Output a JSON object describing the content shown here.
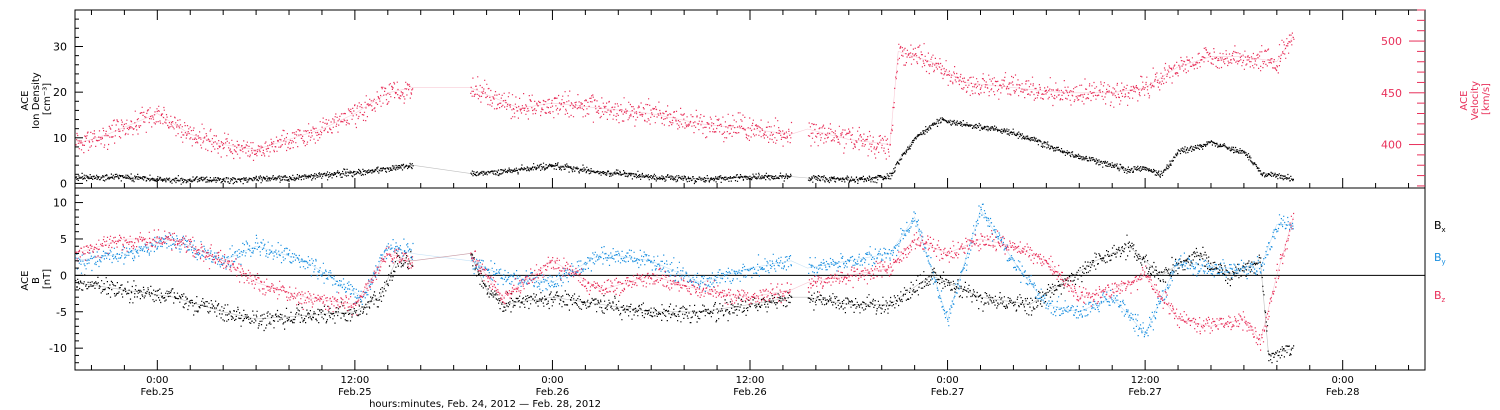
{
  "chart_data": {
    "time_axis": {
      "label": "hours:minutes, Feb. 24, 2012 — Feb. 28, 2012",
      "start": "2012-02-24T19:00",
      "end": "2012-02-28T05:00",
      "ticks": [
        {
          "t": "2012-02-25T00:00",
          "time": "0:00",
          "date": "Feb.25"
        },
        {
          "t": "2012-02-25T12:00",
          "time": "12:00",
          "date": "Feb.25"
        },
        {
          "t": "2012-02-26T00:00",
          "time": "0:00",
          "date": "Feb.26"
        },
        {
          "t": "2012-02-26T12:00",
          "time": "12:00",
          "date": "Feb.26"
        },
        {
          "t": "2012-02-27T00:00",
          "time": "0:00",
          "date": "Feb.27"
        },
        {
          "t": "2012-02-27T12:00",
          "time": "12:00",
          "date": "Feb.27"
        },
        {
          "t": "2012-02-28T00:00",
          "time": "0:00",
          "date": "Feb.28"
        }
      ],
      "data_gaps": [
        {
          "from": "2012-02-25T15:30",
          "to": "2012-02-25T19:00"
        },
        {
          "from": "2012-02-26T14:30",
          "to": "2012-02-26T15:30"
        }
      ],
      "data_end": "2012-02-27T21:00"
    },
    "panels": [
      {
        "type": "scatter",
        "ylabel_lines": [
          "ACE",
          "Ion Density",
          "[cm⁻³]"
        ],
        "ylim": [
          -1,
          38
        ],
        "yticks": [
          0,
          10,
          20,
          30
        ],
        "right_axis": {
          "ylabel_lines": [
            "ACE",
            "Velocity",
            "[km/s]"
          ],
          "ylim": [
            358,
            530
          ],
          "yticks": [
            400,
            450,
            500
          ],
          "color": "#e8305a"
        },
        "series": [
          {
            "axis": "left",
            "color": "#000000",
            "points": [
              [
                "2012-02-24T19:00",
                1.5
              ],
              [
                "2012-02-24T22:00",
                1.5
              ],
              [
                "2012-02-25T00:00",
                1.0
              ],
              [
                "2012-02-25T03:00",
                0.8
              ],
              [
                "2012-02-25T06:00",
                1.0
              ],
              [
                "2012-02-25T09:00",
                1.5
              ],
              [
                "2012-02-25T12:00",
                2.5
              ],
              [
                "2012-02-25T15:30",
                4.0
              ],
              [
                "2012-02-25T19:00",
                2.2
              ],
              [
                "2012-02-25T21:00",
                2.8
              ],
              [
                "2012-02-26T00:00",
                4.0
              ],
              [
                "2012-02-26T03:00",
                2.5
              ],
              [
                "2012-02-26T06:00",
                1.5
              ],
              [
                "2012-02-26T09:00",
                1.0
              ],
              [
                "2012-02-26T12:00",
                1.5
              ],
              [
                "2012-02-26T14:30",
                1.5
              ],
              [
                "2012-02-26T15:30",
                1.2
              ],
              [
                "2012-02-26T19:00",
                1.0
              ],
              [
                "2012-02-26T20:30",
                1.5
              ],
              [
                "2012-02-26T21:00",
                5.0
              ],
              [
                "2012-02-26T22:00",
                10.0
              ],
              [
                "2012-02-26T23:30",
                14.0
              ],
              [
                "2012-02-27T01:00",
                13.0
              ],
              [
                "2012-02-27T03:00",
                12.0
              ],
              [
                "2012-02-27T05:00",
                10.0
              ],
              [
                "2012-02-27T07:00",
                7.0
              ],
              [
                "2012-02-27T09:00",
                5.0
              ],
              [
                "2012-02-27T11:00",
                3.0
              ],
              [
                "2012-02-27T12:00",
                3.5
              ],
              [
                "2012-02-27T13:00",
                2.0
              ],
              [
                "2012-02-27T14:00",
                7.0
              ],
              [
                "2012-02-27T16:00",
                9.0
              ],
              [
                "2012-02-27T18:00",
                7.0
              ],
              [
                "2012-02-27T19:00",
                2.5
              ],
              [
                "2012-02-27T21:00",
                1.0
              ]
            ]
          },
          {
            "axis": "right",
            "color": "#e8305a",
            "points": [
              [
                "2012-02-24T19:00",
                400
              ],
              [
                "2012-02-24T21:00",
                410
              ],
              [
                "2012-02-25T00:00",
                430
              ],
              [
                "2012-02-25T02:00",
                410
              ],
              [
                "2012-02-25T04:00",
                400
              ],
              [
                "2012-02-25T06:00",
                395
              ],
              [
                "2012-02-25T08:00",
                405
              ],
              [
                "2012-02-25T10:00",
                415
              ],
              [
                "2012-02-25T12:00",
                430
              ],
              [
                "2012-02-25T14:00",
                450
              ],
              [
                "2012-02-25T15:30",
                455
              ],
              [
                "2012-02-25T19:00",
                455
              ],
              [
                "2012-02-25T22:00",
                435
              ],
              [
                "2012-02-26T00:00",
                440
              ],
              [
                "2012-02-26T03:00",
                435
              ],
              [
                "2012-02-26T06:00",
                430
              ],
              [
                "2012-02-26T09:00",
                420
              ],
              [
                "2012-02-26T12:00",
                415
              ],
              [
                "2012-02-26T14:30",
                410
              ],
              [
                "2012-02-26T15:30",
                415
              ],
              [
                "2012-02-26T18:00",
                405
              ],
              [
                "2012-02-26T20:30",
                400
              ],
              [
                "2012-02-26T21:00",
                490
              ],
              [
                "2012-02-26T23:00",
                480
              ],
              [
                "2012-02-27T01:00",
                460
              ],
              [
                "2012-02-27T04:00",
                455
              ],
              [
                "2012-02-27T07:00",
                450
              ],
              [
                "2012-02-27T10:00",
                450
              ],
              [
                "2012-02-27T12:00",
                455
              ],
              [
                "2012-02-27T14:00",
                475
              ],
              [
                "2012-02-27T16:00",
                485
              ],
              [
                "2012-02-27T18:00",
                485
              ],
              [
                "2012-02-27T20:00",
                480
              ],
              [
                "2012-02-27T21:00",
                505
              ]
            ]
          }
        ]
      },
      {
        "type": "scatter",
        "ylabel_lines": [
          "ACE",
          "B",
          "[nT]"
        ],
        "ylim": [
          -13,
          12
        ],
        "yticks": [
          -10,
          -5,
          0,
          5,
          10
        ],
        "zero_line": true,
        "legend": [
          {
            "label": "B",
            "sub": "x",
            "color": "#000000"
          },
          {
            "label": "B",
            "sub": "y",
            "color": "#1a8fe0"
          },
          {
            "label": "B",
            "sub": "z",
            "color": "#e8305a"
          }
        ],
        "series": [
          {
            "axis": "left",
            "color": "#000000",
            "points": [
              [
                "2012-02-24T19:00",
                -1
              ],
              [
                "2012-02-24T22:00",
                -2
              ],
              [
                "2012-02-25T01:00",
                -3
              ],
              [
                "2012-02-25T04:00",
                -5
              ],
              [
                "2012-02-25T06:00",
                -6
              ],
              [
                "2012-02-25T09:00",
                -5.5
              ],
              [
                "2012-02-25T12:00",
                -5
              ],
              [
                "2012-02-25T13:30",
                -3
              ],
              [
                "2012-02-25T14:30",
                2
              ],
              [
                "2012-02-25T15:30",
                2
              ],
              [
                "2012-02-25T19:00",
                3
              ],
              [
                "2012-02-25T20:00",
                -2
              ],
              [
                "2012-02-25T21:00",
                -4
              ],
              [
                "2012-02-26T00:00",
                -3
              ],
              [
                "2012-02-26T03:00",
                -4
              ],
              [
                "2012-02-26T06:00",
                -5
              ],
              [
                "2012-02-26T09:00",
                -5
              ],
              [
                "2012-02-26T12:00",
                -4
              ],
              [
                "2012-02-26T14:30",
                -3
              ],
              [
                "2012-02-26T15:30",
                -3
              ],
              [
                "2012-02-26T18:00",
                -4
              ],
              [
                "2012-02-26T20:30",
                -4
              ],
              [
                "2012-02-26T23:00",
                0
              ],
              [
                "2012-02-27T02:00",
                -3
              ],
              [
                "2012-02-27T05:00",
                -4
              ],
              [
                "2012-02-27T07:00",
                -1
              ],
              [
                "2012-02-27T09:00",
                2
              ],
              [
                "2012-02-27T11:00",
                4
              ],
              [
                "2012-02-27T13:00",
                0
              ],
              [
                "2012-02-27T15:00",
                3
              ],
              [
                "2012-02-27T17:00",
                0
              ],
              [
                "2012-02-27T19:00",
                2
              ],
              [
                "2012-02-27T19:30",
                -11
              ],
              [
                "2012-02-27T21:00",
                -10
              ]
            ]
          },
          {
            "axis": "left",
            "color": "#1a8fe0",
            "points": [
              [
                "2012-02-24T19:00",
                2
              ],
              [
                "2012-02-24T22:00",
                3
              ],
              [
                "2012-02-25T01:00",
                5
              ],
              [
                "2012-02-25T04:00",
                2
              ],
              [
                "2012-02-25T06:00",
                4
              ],
              [
                "2012-02-25T09:00",
                2
              ],
              [
                "2012-02-25T11:00",
                -1
              ],
              [
                "2012-02-25T12:30",
                -3
              ],
              [
                "2012-02-25T14:00",
                4
              ],
              [
                "2012-02-25T15:30",
                3
              ],
              [
                "2012-02-25T19:00",
                2
              ],
              [
                "2012-02-25T21:00",
                0
              ],
              [
                "2012-02-26T00:00",
                -1
              ],
              [
                "2012-02-26T03:00",
                3
              ],
              [
                "2012-02-26T06:00",
                2
              ],
              [
                "2012-02-26T09:00",
                -1
              ],
              [
                "2012-02-26T12:00",
                1
              ],
              [
                "2012-02-26T14:30",
                2
              ],
              [
                "2012-02-26T15:30",
                1
              ],
              [
                "2012-02-26T18:00",
                2
              ],
              [
                "2012-02-26T20:30",
                3
              ],
              [
                "2012-02-26T22:00",
                8
              ],
              [
                "2012-02-27T00:00",
                -6
              ],
              [
                "2012-02-27T02:00",
                9
              ],
              [
                "2012-02-27T04:00",
                2
              ],
              [
                "2012-02-27T06:00",
                -4
              ],
              [
                "2012-02-27T08:00",
                -5
              ],
              [
                "2012-02-27T10:00",
                -3
              ],
              [
                "2012-02-27T12:00",
                -8
              ],
              [
                "2012-02-27T14:00",
                2
              ],
              [
                "2012-02-27T16:00",
                1
              ],
              [
                "2012-02-27T19:00",
                1
              ],
              [
                "2012-02-27T20:00",
                7
              ],
              [
                "2012-02-27T21:00",
                7
              ]
            ]
          },
          {
            "axis": "left",
            "color": "#e8305a",
            "points": [
              [
                "2012-02-24T19:00",
                3
              ],
              [
                "2012-02-24T22:00",
                5
              ],
              [
                "2012-02-25T01:00",
                5
              ],
              [
                "2012-02-25T04:00",
                2
              ],
              [
                "2012-02-25T06:00",
                -1
              ],
              [
                "2012-02-25T09:00",
                -3
              ],
              [
                "2012-02-25T12:00",
                -4
              ],
              [
                "2012-02-25T14:00",
                3
              ],
              [
                "2012-02-25T15:30",
                2
              ],
              [
                "2012-02-25T19:00",
                3
              ],
              [
                "2012-02-25T21:00",
                -3
              ],
              [
                "2012-02-26T00:00",
                2
              ],
              [
                "2012-02-26T03:00",
                -2
              ],
              [
                "2012-02-26T06:00",
                0
              ],
              [
                "2012-02-26T09:00",
                -2
              ],
              [
                "2012-02-26T12:00",
                -3
              ],
              [
                "2012-02-26T14:30",
                -2
              ],
              [
                "2012-02-26T15:30",
                -1
              ],
              [
                "2012-02-26T18:00",
                0
              ],
              [
                "2012-02-26T20:30",
                1
              ],
              [
                "2012-02-26T22:00",
                5
              ],
              [
                "2012-02-27T00:00",
                3
              ],
              [
                "2012-02-27T02:00",
                5
              ],
              [
                "2012-02-27T04:00",
                4
              ],
              [
                "2012-02-27T06:00",
                2
              ],
              [
                "2012-02-27T08:00",
                -3
              ],
              [
                "2012-02-27T10:00",
                -2
              ],
              [
                "2012-02-27T12:00",
                0
              ],
              [
                "2012-02-27T14:00",
                -6
              ],
              [
                "2012-02-27T16:00",
                -7
              ],
              [
                "2012-02-27T18:00",
                -6
              ],
              [
                "2012-02-27T19:00",
                -9
              ],
              [
                "2012-02-27T20:00",
                0
              ],
              [
                "2012-02-27T21:00",
                8
              ]
            ]
          }
        ]
      }
    ]
  }
}
